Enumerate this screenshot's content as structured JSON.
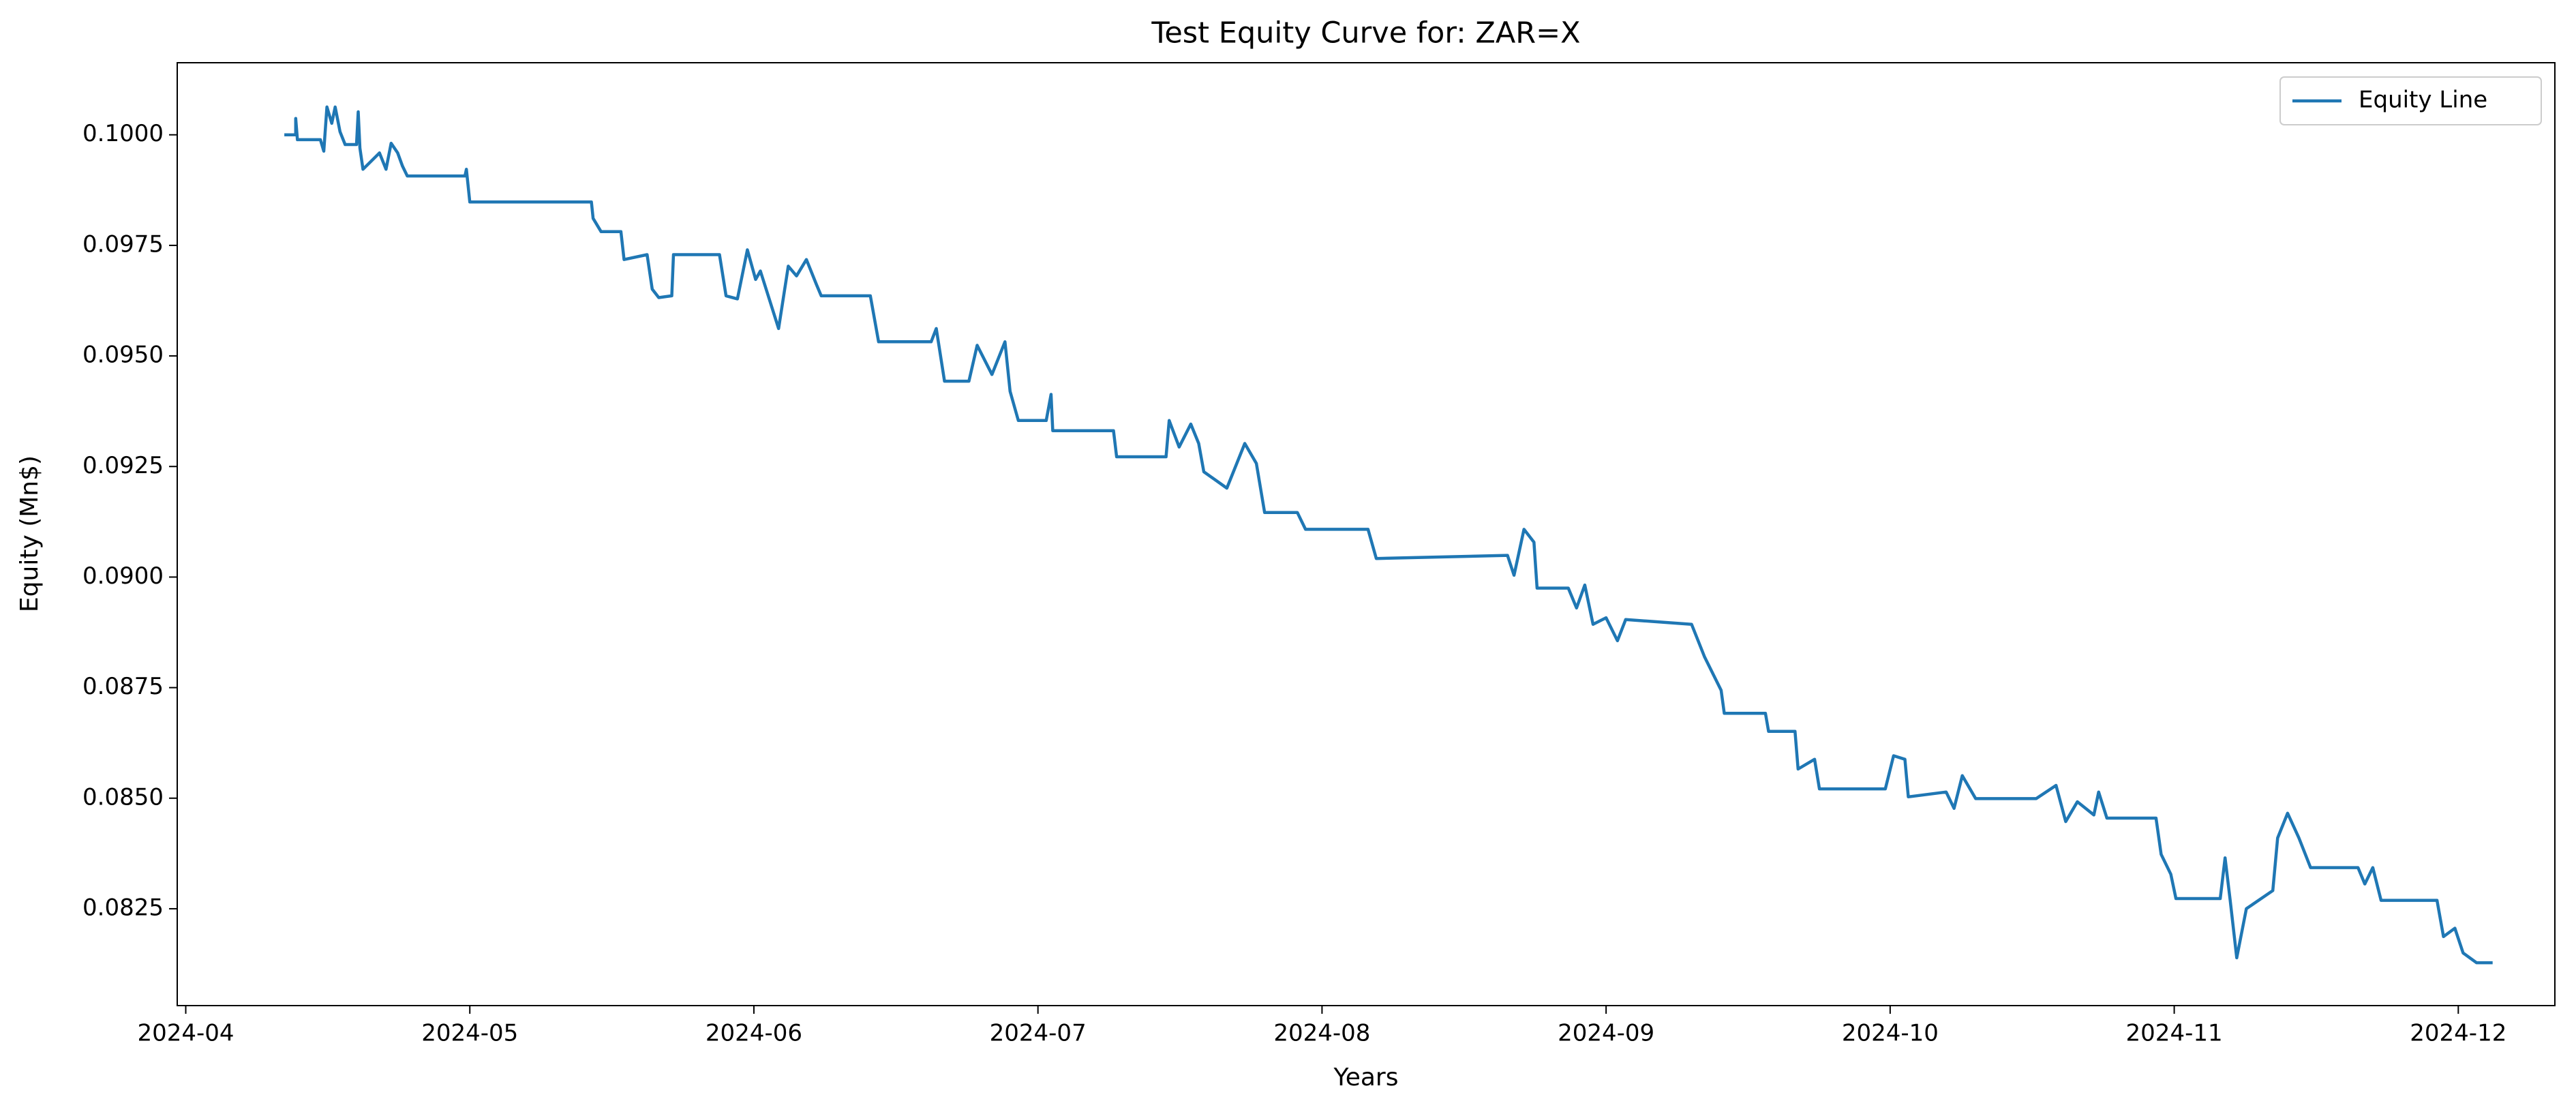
{
  "chart_data": {
    "type": "line",
    "title": "Test Equity Curve for: ZAR=X",
    "xlabel": "Years",
    "ylabel": "Equity (Mn$)",
    "x": [
      4.347,
      4.387,
      4.387,
      4.393,
      4.474,
      4.486,
      4.497,
      4.514,
      4.526,
      4.543,
      4.561,
      4.601,
      4.607,
      4.613,
      4.624,
      4.682,
      4.705,
      4.723,
      4.746,
      4.763,
      4.78,
      4.983,
      4.988,
      5.0,
      5.428,
      5.434,
      5.462,
      5.532,
      5.543,
      5.624,
      5.642,
      5.665,
      5.711,
      5.717,
      5.879,
      5.902,
      5.942,
      5.977,
      6.006,
      6.023,
      6.087,
      6.121,
      6.15,
      6.185,
      6.22,
      6.237,
      6.41,
      6.439,
      6.624,
      6.642,
      6.671,
      6.757,
      6.786,
      6.838,
      6.884,
      6.902,
      6.931,
      7.029,
      7.046,
      7.052,
      7.266,
      7.277,
      7.451,
      7.462,
      7.497,
      7.538,
      7.566,
      7.584,
      7.665,
      7.728,
      7.769,
      7.798,
      7.913,
      7.942,
      8.162,
      8.191,
      8.653,
      8.676,
      8.711,
      8.746,
      8.757,
      8.867,
      8.896,
      8.925,
      8.954,
      9.0,
      9.04,
      9.069,
      9.301,
      9.347,
      9.405,
      9.416,
      9.561,
      9.572,
      9.665,
      9.676,
      9.734,
      9.751,
      9.983,
      10.012,
      10.052,
      10.064,
      10.197,
      10.225,
      10.254,
      10.301,
      10.514,
      10.584,
      10.618,
      10.659,
      10.717,
      10.734,
      10.763,
      10.936,
      10.954,
      10.988,
      11.006,
      11.162,
      11.179,
      11.197,
      11.22,
      11.254,
      11.347,
      11.364,
      11.399,
      11.439,
      11.48,
      11.647,
      11.671,
      11.699,
      11.728,
      11.925,
      11.948,
      11.988,
      12.017,
      12.064,
      12.121
    ],
    "series": [
      {
        "name": "Equity Line",
        "color": "#1f77b4",
        "values": [
          0.1,
          0.1,
          0.10037,
          0.09989,
          0.09989,
          0.09963,
          0.10063,
          0.10026,
          0.10063,
          0.10007,
          0.09978,
          0.09978,
          0.10052,
          0.0997,
          0.09922,
          0.09959,
          0.09922,
          0.09981,
          0.09959,
          0.09929,
          0.09907,
          0.09907,
          0.09922,
          0.09848,
          0.09848,
          0.09811,
          0.09781,
          0.09781,
          0.09718,
          0.09729,
          0.09651,
          0.09632,
          0.09636,
          0.09729,
          0.09729,
          0.09636,
          0.09629,
          0.0974,
          0.09673,
          0.09692,
          0.09562,
          0.09703,
          0.09681,
          0.09718,
          0.09662,
          0.09636,
          0.09636,
          0.09532,
          0.09532,
          0.09562,
          0.09443,
          0.09443,
          0.09524,
          0.09458,
          0.09532,
          0.0942,
          0.09354,
          0.09354,
          0.09413,
          0.09331,
          0.09331,
          0.09272,
          0.09272,
          0.09354,
          0.09294,
          0.09346,
          0.09302,
          0.09238,
          0.09201,
          0.09302,
          0.09257,
          0.09146,
          0.09146,
          0.09108,
          0.09108,
          0.09042,
          0.09049,
          0.09004,
          0.09108,
          0.09079,
          0.08975,
          0.08975,
          0.0893,
          0.08982,
          0.08893,
          0.08908,
          0.08856,
          0.08904,
          0.08893,
          0.08819,
          0.08744,
          0.08692,
          0.08692,
          0.08651,
          0.08651,
          0.08566,
          0.08588,
          0.08521,
          0.08521,
          0.08596,
          0.08588,
          0.08503,
          0.08514,
          0.08477,
          0.08551,
          0.08499,
          0.08499,
          0.08529,
          0.08447,
          0.08492,
          0.08462,
          0.08514,
          0.08455,
          0.08455,
          0.08373,
          0.08328,
          0.08273,
          0.08273,
          0.08365,
          0.08269,
          0.08139,
          0.0825,
          0.08291,
          0.0841,
          0.08466,
          0.0841,
          0.08343,
          0.08343,
          0.08306,
          0.08343,
          0.08269,
          0.08269,
          0.08187,
          0.08206,
          0.0815,
          0.08128,
          0.08128
        ]
      }
    ],
    "xlim": [
      3.97,
      12.34
    ],
    "xticks": [
      {
        "value": 4,
        "label": "2024-04"
      },
      {
        "value": 5,
        "label": "2024-05"
      },
      {
        "value": 6,
        "label": "2024-06"
      },
      {
        "value": 7,
        "label": "2024-07"
      },
      {
        "value": 8,
        "label": "2024-08"
      },
      {
        "value": 9,
        "label": "2024-09"
      },
      {
        "value": 10,
        "label": "2024-10"
      },
      {
        "value": 11,
        "label": "2024-11"
      },
      {
        "value": 12,
        "label": "2024-12"
      }
    ],
    "ylim": [
      0.08031,
      0.10163
    ],
    "yticks": [
      0.0825,
      {
        "value": 0.085,
        "label": "0.0850"
      },
      0.0875,
      {
        "value": 0.09,
        "label": "0.0900"
      },
      0.0925,
      {
        "value": 0.095,
        "label": "0.0950"
      },
      0.0975,
      {
        "value": 0.1,
        "label": "0.1000"
      }
    ],
    "grid": false,
    "legend": "upper right"
  }
}
